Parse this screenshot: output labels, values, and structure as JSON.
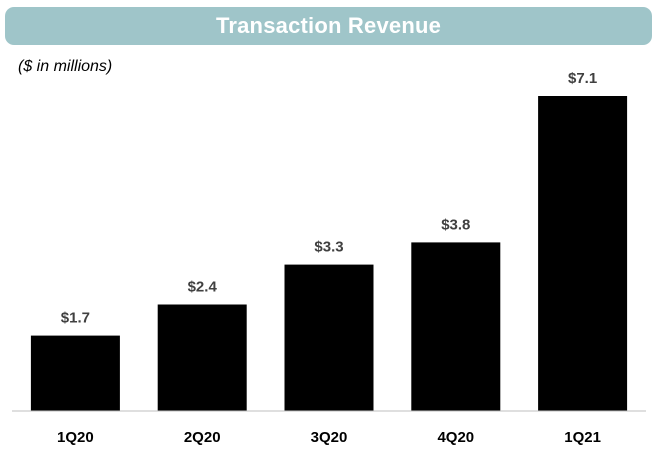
{
  "chart_data": {
    "type": "bar",
    "title": "Transaction Revenue",
    "subtitle": "($ in millions)",
    "categories": [
      "1Q20",
      "2Q20",
      "3Q20",
      "4Q20",
      "1Q21"
    ],
    "values": [
      1.7,
      2.4,
      3.3,
      3.8,
      7.1
    ],
    "value_labels": [
      "$1.7",
      "$2.4",
      "$3.3",
      "$3.8",
      "$7.1"
    ],
    "xlabel": "",
    "ylabel": "",
    "ylim": [
      0,
      7.1
    ],
    "grid": false,
    "legend": "none",
    "bar_color": "#000000",
    "title_background": "#9fc5c9"
  }
}
